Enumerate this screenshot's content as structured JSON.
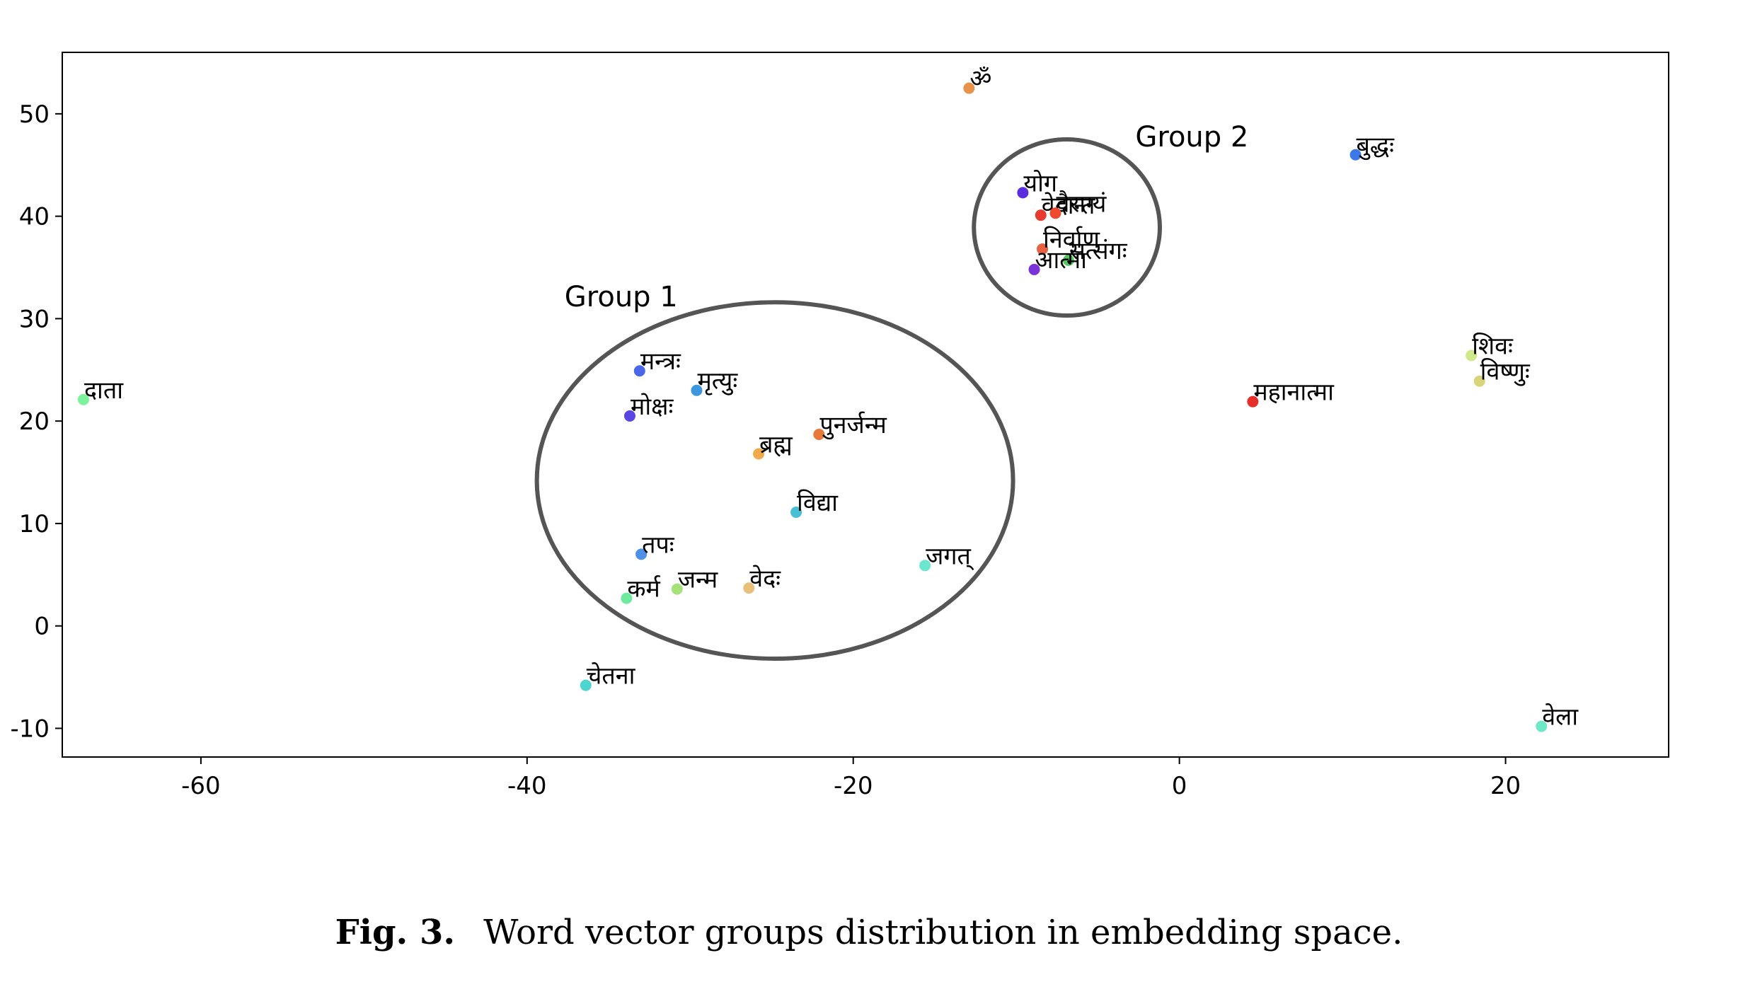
{
  "caption": {
    "label": "Fig. 3.",
    "text": "Word vector groups distribution in embedding space."
  },
  "chart_data": {
    "type": "scatter",
    "title": "",
    "xlabel": "",
    "ylabel": "",
    "xlim": [
      -68.5,
      30
    ],
    "ylim": [
      -12.8,
      56
    ],
    "grid": false,
    "x_ticks": [
      -60,
      -40,
      -20,
      0,
      20
    ],
    "x_tick_labels": [
      "-60",
      "-40",
      "-20",
      "0",
      "20"
    ],
    "y_ticks": [
      -10,
      0,
      10,
      20,
      30,
      40,
      50
    ],
    "y_tick_labels": [
      "-10",
      "0",
      "10",
      "20",
      "30",
      "40",
      "50"
    ],
    "points": [
      {
        "label": "दाता",
        "x": -67.2,
        "y": 22.1,
        "color": "#7CF29A"
      },
      {
        "label": "ॐ",
        "x": -12.9,
        "y": 52.5,
        "color": "#E8924A"
      },
      {
        "label": "बुद्धः",
        "x": 10.8,
        "y": 46.0,
        "color": "#3C78E8"
      },
      {
        "label": "योग",
        "x": -9.6,
        "y": 42.3,
        "color": "#5A2DE0"
      },
      {
        "label": "वेदान्त",
        "x": -8.5,
        "y": 40.1,
        "color": "#E63B2E"
      },
      {
        "label": "वैराग्यं",
        "x": -7.6,
        "y": 40.3,
        "color": "#EE4A30"
      },
      {
        "label": "निर्वाण",
        "x": -8.4,
        "y": 36.8,
        "color": "#E86242"
      },
      {
        "label": "सत्संगः",
        "x": -6.8,
        "y": 35.7,
        "color": "#56C75E"
      },
      {
        "label": "आत्मा",
        "x": -8.9,
        "y": 34.8,
        "color": "#7A33D8"
      },
      {
        "label": "मन्त्रः",
        "x": -33.1,
        "y": 24.9,
        "color": "#4A67E6"
      },
      {
        "label": "मृत्युः",
        "x": -29.6,
        "y": 23.0,
        "color": "#3D96E0"
      },
      {
        "label": "मोक्षः",
        "x": -33.7,
        "y": 20.5,
        "color": "#5A46E2"
      },
      {
        "label": "पुनर्जन्म",
        "x": -22.1,
        "y": 18.7,
        "color": "#E8793A"
      },
      {
        "label": "ब्रह्म",
        "x": -25.8,
        "y": 16.8,
        "color": "#F2A94C"
      },
      {
        "label": "विद्या",
        "x": -23.5,
        "y": 11.1,
        "color": "#46C0D4"
      },
      {
        "label": "तपः",
        "x": -33.0,
        "y": 7.0,
        "color": "#4E8FE8"
      },
      {
        "label": "जगत्",
        "x": -15.6,
        "y": 5.9,
        "color": "#6BE6CF"
      },
      {
        "label": "जन्म",
        "x": -30.8,
        "y": 3.6,
        "color": "#A6E27A"
      },
      {
        "label": "वेदः",
        "x": -26.4,
        "y": 3.7,
        "color": "#E9C07A"
      },
      {
        "label": "कर्म",
        "x": -33.9,
        "y": 2.7,
        "color": "#6DEA9C"
      },
      {
        "label": "चेतना",
        "x": -36.4,
        "y": -5.8,
        "color": "#4ED5D0"
      },
      {
        "label": "शिवः",
        "x": 17.9,
        "y": 26.4,
        "color": "#CFE889"
      },
      {
        "label": "विष्णुः",
        "x": 18.4,
        "y": 23.9,
        "color": "#D8D47A"
      },
      {
        "label": "महानात्मा",
        "x": 4.5,
        "y": 21.9,
        "color": "#E62F2A"
      },
      {
        "label": "वेला",
        "x": 22.2,
        "y": -9.8,
        "color": "#6EE8C6"
      }
    ],
    "annotations": [
      {
        "text": "Group 1",
        "shape": "ellipse",
        "cx": -24.8,
        "cy": 14.2,
        "rx": 14.6,
        "ry": 17.4,
        "label_x": -37.7,
        "label_y": 31.2
      },
      {
        "text": "Group 2",
        "shape": "ellipse",
        "cx": -6.9,
        "cy": 38.9,
        "rx": 5.7,
        "ry": 8.6,
        "label_x": -2.7,
        "label_y": 46.8
      }
    ]
  }
}
